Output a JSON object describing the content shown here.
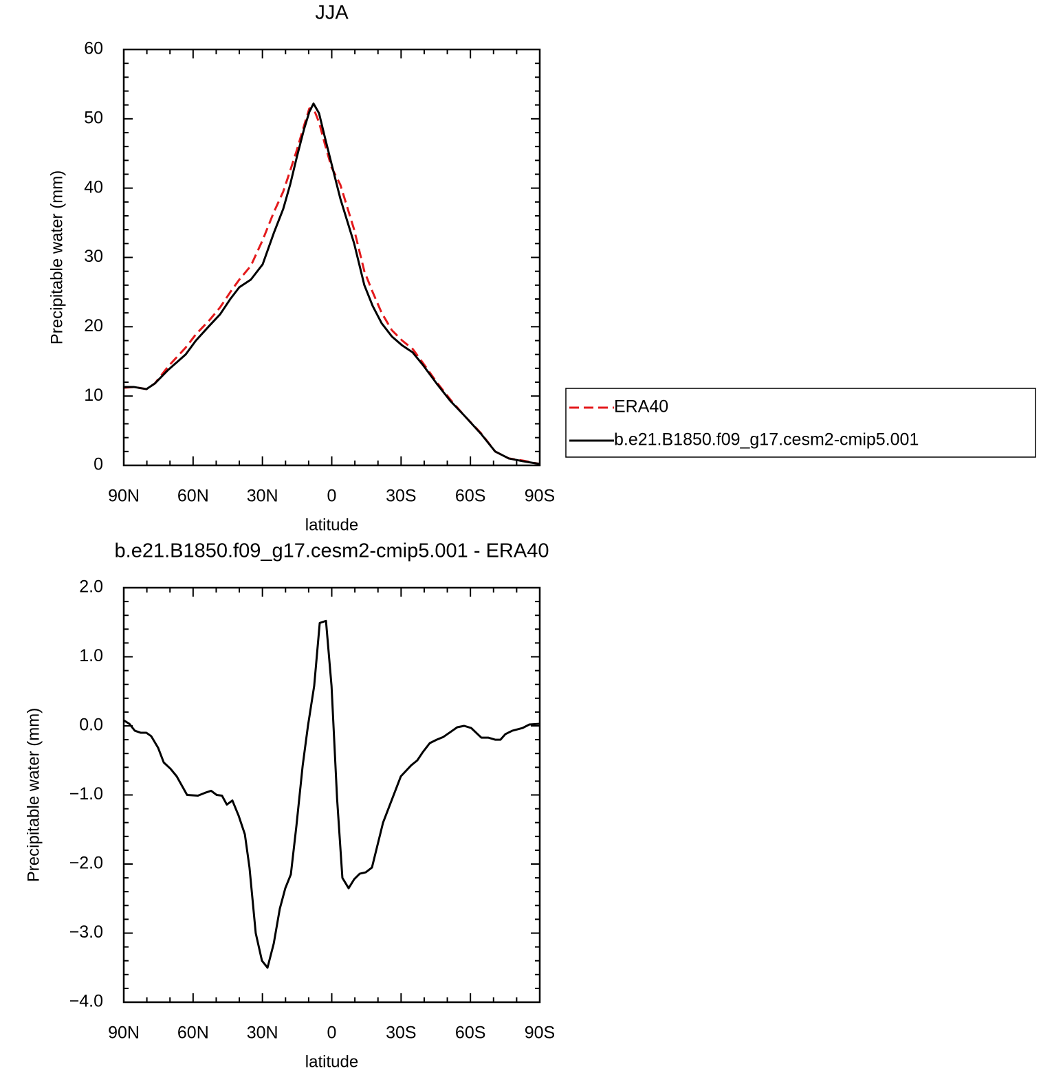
{
  "chart_data": [
    {
      "type": "line",
      "title": "JJA",
      "xlabel": "latitude",
      "ylabel": "Precipitable water (mm)",
      "x": [
        90,
        85.5,
        80.2,
        76.6,
        70.7,
        63.2,
        58.8,
        52.8,
        48.3,
        43.9,
        40,
        35,
        29.9,
        25.1,
        21,
        18,
        15.1,
        12,
        9.7,
        7.9,
        5.5,
        3.1,
        0.1,
        -3.7,
        -9.7,
        -14.1,
        -17.7,
        -21.6,
        -26,
        -30.5,
        -35,
        -39.4,
        -45.4,
        -51.3,
        -57.3,
        -64.7,
        -70.7,
        -76.6,
        -82.6,
        -90
      ],
      "series": [
        {
          "name": "ERA40",
          "color": "#e41a1c",
          "dash": true,
          "values": [
            11.2,
            11.3,
            11.0,
            11.8,
            14.3,
            17.0,
            18.9,
            21.0,
            22.8,
            25.0,
            26.8,
            28.8,
            32.5,
            36.5,
            39.5,
            42.5,
            45.5,
            49.0,
            51.5,
            51.5,
            49.5,
            46.5,
            43.0,
            40.5,
            34.0,
            28.0,
            25.0,
            22.0,
            19.5,
            18.0,
            16.8,
            14.8,
            12.0,
            9.5,
            7.2,
            4.6,
            2.0,
            1.0,
            0.7,
            0.2
          ]
        },
        {
          "name": "b.e21.B1850.f09_g17.cesm2-cmip5.001",
          "color": "#000000",
          "dash": false,
          "values": [
            11.3,
            11.3,
            11.0,
            11.8,
            13.8,
            16.0,
            18.0,
            20.2,
            21.8,
            24.0,
            25.7,
            26.8,
            29.0,
            33.5,
            37.0,
            40.5,
            44.5,
            48.5,
            51.0,
            52.2,
            50.8,
            47.5,
            43.5,
            38.5,
            32.0,
            26.0,
            23.0,
            20.5,
            18.6,
            17.3,
            16.3,
            14.5,
            11.8,
            9.3,
            7.2,
            4.5,
            2.0,
            1.0,
            0.6,
            0.2
          ]
        }
      ],
      "xlim": [
        90,
        -90
      ],
      "xticks": [
        {
          "value": 90,
          "label": "90N"
        },
        {
          "value": 60,
          "label": "60N"
        },
        {
          "value": 30,
          "label": "30N"
        },
        0,
        {
          "value": -30,
          "label": "30S"
        },
        {
          "value": -60,
          "label": "60S"
        },
        {
          "value": -90,
          "label": "90S"
        }
      ],
      "xminorticks": [
        80,
        70,
        50,
        40,
        20,
        10,
        -10,
        -20,
        -40,
        -50,
        -70,
        -80
      ],
      "ylim": [
        0,
        60
      ],
      "yticks": [
        0,
        10,
        20,
        30,
        40,
        50,
        60
      ],
      "yminorticks": [
        2,
        4,
        6,
        8,
        12,
        14,
        16,
        18,
        22,
        24,
        26,
        28,
        32,
        34,
        36,
        38,
        42,
        44,
        46,
        48,
        52,
        54,
        56,
        58
      ],
      "legend": "right"
    },
    {
      "type": "line",
      "title": "b.e21.B1850.f09_g17.cesm2-cmip5.001 - ERA40",
      "xlabel": "latitude",
      "ylabel": "Precipitable water (mm)",
      "x": [
        90,
        87.6,
        85.2,
        82.6,
        80.2,
        78.1,
        75.1,
        72.7,
        69.8,
        67.1,
        62.6,
        57.9,
        54.9,
        52.2,
        49.8,
        47.5,
        45.4,
        43,
        40.3,
        37.6,
        35.6,
        32.9,
        30.2,
        27.8,
        25.1,
        22.5,
        20.1,
        17.7,
        15.3,
        12.6,
        10.3,
        7.6,
        5.2,
        2.5,
        0.1,
        -2.3,
        -4.6,
        -7.3,
        -9.7,
        -12.1,
        -14.7,
        -17.4,
        -22.2,
        -29.9,
        -34.4,
        -37,
        -39.4,
        -42.4,
        -45.4,
        -48.3,
        -51.3,
        -54.3,
        -57.3,
        -60.3,
        -64.7,
        -67.7,
        -70.7,
        -73,
        -75.1,
        -78.1,
        -82.6,
        -85.5,
        -90
      ],
      "series": [
        {
          "name": "b.e21.B1850.f09_g17.cesm2-cmip5.001 - ERA40",
          "color": "#000000",
          "dash": false,
          "values": [
            0.08,
            0.03,
            -0.07,
            -0.1,
            -0.1,
            -0.15,
            -0.32,
            -0.53,
            -0.62,
            -0.73,
            -1.0,
            -1.01,
            -0.97,
            -0.94,
            -1.0,
            -1.01,
            -1.14,
            -1.08,
            -1.3,
            -1.57,
            -2.05,
            -3.0,
            -3.4,
            -3.5,
            -3.15,
            -2.65,
            -2.35,
            -2.15,
            -1.45,
            -0.58,
            0.0,
            0.58,
            1.49,
            1.52,
            0.58,
            -1.05,
            -2.2,
            -2.35,
            -2.22,
            -2.14,
            -2.12,
            -2.05,
            -1.4,
            -0.73,
            -0.57,
            -0.5,
            -0.38,
            -0.25,
            -0.2,
            -0.16,
            -0.09,
            -0.02,
            0.0,
            -0.03,
            -0.17,
            -0.17,
            -0.2,
            -0.2,
            -0.12,
            -0.07,
            -0.03,
            0.02,
            0.03
          ]
        }
      ],
      "xlim": [
        90,
        -90
      ],
      "xticks": [
        {
          "value": 90,
          "label": "90N"
        },
        {
          "value": 60,
          "label": "60N"
        },
        {
          "value": 30,
          "label": "30N"
        },
        0,
        {
          "value": -30,
          "label": "30S"
        },
        {
          "value": -60,
          "label": "60S"
        },
        {
          "value": -90,
          "label": "90S"
        }
      ],
      "xminorticks": [
        80,
        70,
        50,
        40,
        20,
        10,
        -10,
        -20,
        -40,
        -50,
        -70,
        -80
      ],
      "ylim": [
        -4,
        2
      ],
      "yticks": [
        {
          "value": -4,
          "label": "−4.0"
        },
        {
          "value": -3,
          "label": "−3.0"
        },
        {
          "value": -2,
          "label": "−2.0"
        },
        {
          "value": -1,
          "label": "−1.0"
        },
        {
          "value": 0,
          "label": "0.0"
        },
        {
          "value": 1,
          "label": "1.0"
        },
        {
          "value": 2,
          "label": "2.0"
        }
      ],
      "yminorticks": [
        -3.8,
        -3.6,
        -3.4,
        -3.2,
        -2.8,
        -2.6,
        -2.4,
        -2.2,
        -1.8,
        -1.6,
        -1.4,
        -1.2,
        -0.8,
        -0.6,
        -0.4,
        -0.2,
        0.2,
        0.4,
        0.6,
        0.8,
        1.2,
        1.4,
        1.6,
        1.8
      ]
    }
  ]
}
